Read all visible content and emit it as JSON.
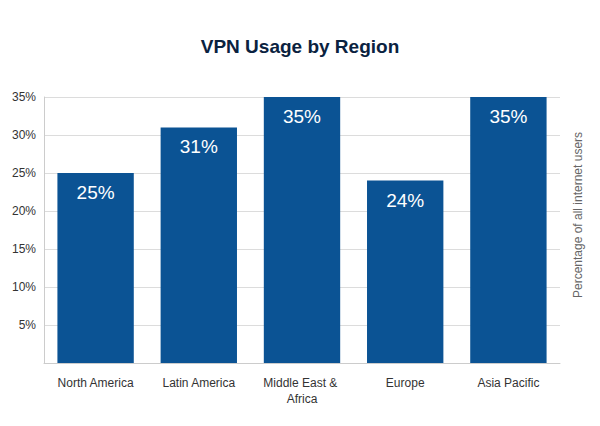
{
  "chart_data": {
    "type": "bar",
    "title": "VPN Usage by Region",
    "ylabel": "Percentage of all internet users",
    "categories": [
      "North America",
      "Latin America",
      "Middle East & Africa",
      "Europe",
      "Asia Pacific"
    ],
    "values": [
      25,
      31,
      35,
      24,
      35
    ],
    "value_labels": [
      "25%",
      "31%",
      "35%",
      "24%",
      "35%"
    ],
    "color": "#0b5394",
    "ylim": [
      0,
      35
    ],
    "yticks": [
      {
        "value": 5,
        "label": "5%"
      },
      {
        "value": 10,
        "label": "10%"
      },
      {
        "value": 15,
        "label": "15%"
      },
      {
        "value": 20,
        "label": "20%"
      },
      {
        "value": 25,
        "label": "25%"
      },
      {
        "value": 30,
        "label": "30%"
      },
      {
        "value": 35,
        "label": "35%"
      }
    ],
    "grid": true,
    "data_labels": true
  }
}
